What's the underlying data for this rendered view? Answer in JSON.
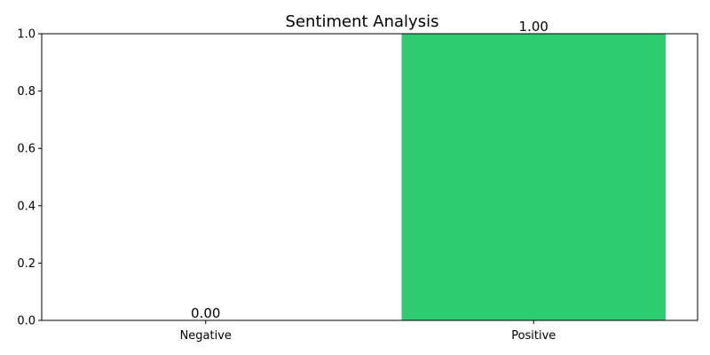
{
  "chart_data": {
    "type": "bar",
    "title": "Sentiment Analysis",
    "categories": [
      "Negative",
      "Positive"
    ],
    "values": [
      0.0,
      1.0
    ],
    "data_labels": [
      "0.00",
      "1.00"
    ],
    "bar_colors": [
      "#2ecc71",
      "#2ecc71"
    ],
    "xlabel": "",
    "ylabel": "",
    "ylim": [
      0,
      1
    ],
    "yticks": [
      0.0,
      0.2,
      0.4,
      0.6,
      0.8,
      1.0
    ],
    "ytick_labels": [
      "0.0",
      "0.2",
      "0.4",
      "0.6",
      "0.8",
      "1.0"
    ],
    "grid": false,
    "legend": false
  }
}
